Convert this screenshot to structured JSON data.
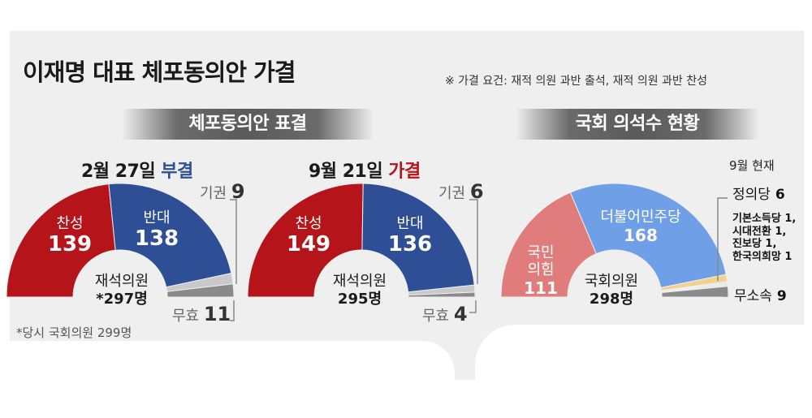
{
  "header": {
    "title": "이재명 대표 체포동의안 가결",
    "note": "※ 가결 요건: 재적 의원 과반 출석, 재적 의원 과반 찬성"
  },
  "sections": {
    "left_banner": "체포동의안 표결",
    "right_banner": "국회 의석수 현황"
  },
  "votes": [
    {
      "date": "2월 27일",
      "result": "부결",
      "for_label": "찬성",
      "for": 139,
      "against_label": "반대",
      "against": 138,
      "abstain_label": "기권",
      "abstain": 9,
      "invalid_label": "무효",
      "invalid": 11,
      "center_label": "재석의원",
      "center_value": "*297명"
    },
    {
      "date": "9월 21일",
      "result": "가결",
      "for_label": "찬성",
      "for": 149,
      "against_label": "반대",
      "against": 136,
      "abstain_label": "기권",
      "abstain": 6,
      "invalid_label": "무효",
      "invalid": 4,
      "center_label": "재석의원",
      "center_value": "295명"
    }
  ],
  "footnote": "*당시 국회의원 299명",
  "seats": {
    "as_of": "9월 현재",
    "center_label": "국회의원",
    "center_value": "298명",
    "ppp_label": "국민\n의힘",
    "ppp": 111,
    "dem_label": "더불어민주당",
    "dem": 168,
    "justice_label": "정의당",
    "justice": 6,
    "small_parties": [
      "기본소득당 1,",
      "시대전환 1,",
      "진보당 1,",
      "한국의희망 1"
    ],
    "small_total": 4,
    "independent_label": "무소속",
    "independent": 9
  },
  "chart_data": [
    {
      "type": "pie",
      "title": "2월 27일 부결",
      "categories": [
        "찬성",
        "반대",
        "기권",
        "무효"
      ],
      "values": [
        139,
        138,
        9,
        11
      ],
      "colors": [
        "#b5141a",
        "#2e4f95",
        "#c9c9c9",
        "#8a8a8a"
      ],
      "shape": "semicircle"
    },
    {
      "type": "pie",
      "title": "9월 21일 가결",
      "categories": [
        "찬성",
        "반대",
        "기권",
        "무효"
      ],
      "values": [
        149,
        136,
        6,
        4
      ],
      "colors": [
        "#b5141a",
        "#2e4f95",
        "#c9c9c9",
        "#8a8a8a"
      ],
      "shape": "semicircle"
    },
    {
      "type": "pie",
      "title": "국회 의석수 현황",
      "categories": [
        "국민의힘",
        "더불어민주당",
        "정의당",
        "기본소득당",
        "시대전환",
        "진보당",
        "한국의희망",
        "무소속"
      ],
      "values": [
        111,
        168,
        6,
        1,
        1,
        1,
        1,
        9
      ],
      "colors": [
        "#e07c7c",
        "#6f9fe6",
        "#f2d28a",
        "#d9d9d9",
        "#d9d9d9",
        "#d9d9d9",
        "#d9d9d9",
        "#8a8a8a"
      ],
      "shape": "semicircle"
    }
  ]
}
